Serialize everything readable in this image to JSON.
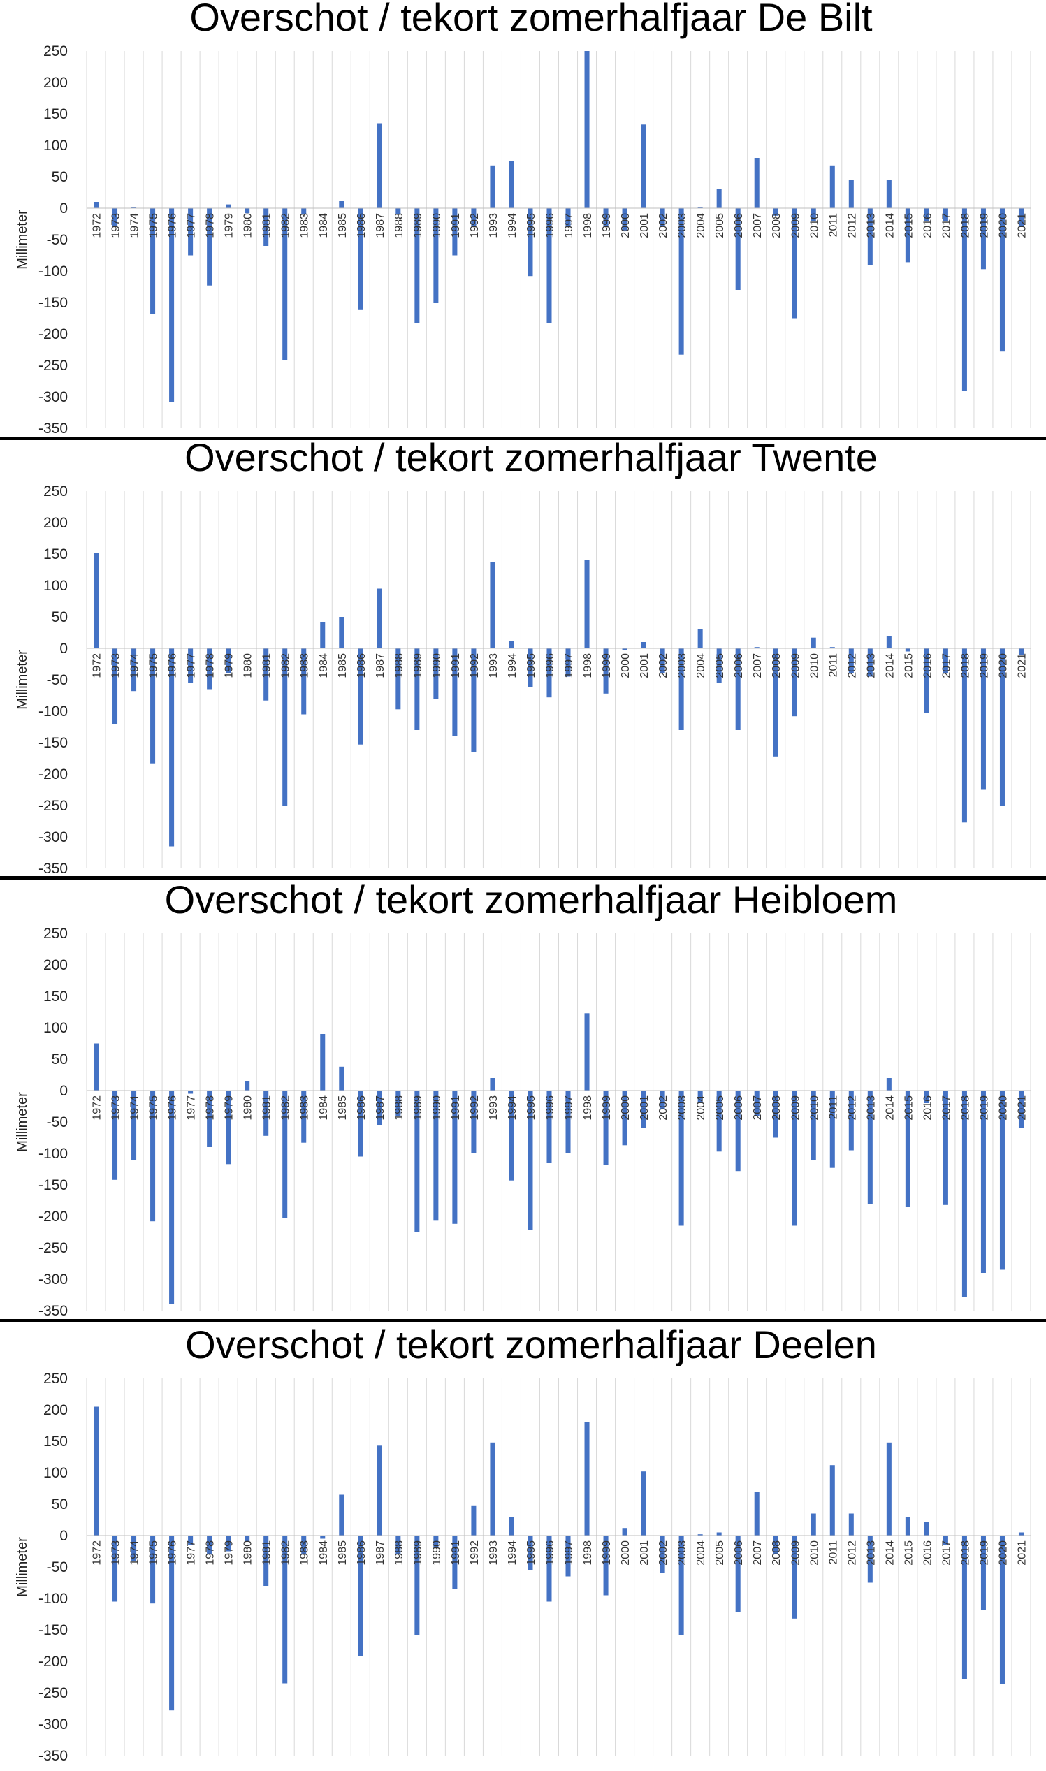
{
  "style": {
    "bar_color": "#4472c4",
    "grid_color": "#d9d9d9",
    "divider_color": "#000000"
  },
  "chart_data": [
    {
      "type": "bar",
      "title": "Overschot / tekort zomerhalfjaar De Bilt",
      "ylabel": "Millimeter",
      "xlabel": "",
      "ylim": [
        -350,
        250
      ],
      "yticks": [
        "250",
        "200",
        "150",
        "100",
        "50",
        "0",
        "-50",
        "-100",
        "-150",
        "-200",
        "-250",
        "-300",
        "-350"
      ],
      "grid": "vertical",
      "categories": [
        "1972",
        "1973",
        "1974",
        "1975",
        "1976",
        "1977",
        "1978",
        "1979",
        "1980",
        "1981",
        "1982",
        "1983",
        "1984",
        "1985",
        "1986",
        "1987",
        "1988",
        "1989",
        "1990",
        "1991",
        "1992",
        "1993",
        "1994",
        "1995",
        "1996",
        "1997",
        "1998",
        "1999",
        "2000",
        "2001",
        "2002",
        "2003",
        "2004",
        "2005",
        "2006",
        "2007",
        "2008",
        "2009",
        "2010",
        "2011",
        "2012",
        "2013",
        "2014",
        "2015",
        "2016",
        "2017",
        "2018",
        "2019",
        "2020",
        "2021"
      ],
      "values": [
        10,
        -30,
        2,
        -168,
        -308,
        -75,
        -123,
        6,
        -8,
        -60,
        -242,
        -10,
        0,
        12,
        -162,
        135,
        -10,
        -183,
        -150,
        -75,
        -30,
        68,
        75,
        -108,
        -183,
        -30,
        250,
        -30,
        -35,
        133,
        -28,
        -233,
        2,
        30,
        -130,
        80,
        -12,
        -175,
        -20,
        68,
        45,
        -90,
        45,
        -86,
        -20,
        -20,
        -290,
        -97,
        -228,
        -30
      ]
    },
    {
      "type": "bar",
      "title": "Overschot / tekort zomerhalfjaar Twente",
      "ylabel": "Millimeter",
      "xlabel": "",
      "ylim": [
        -350,
        250
      ],
      "yticks": [
        "250",
        "200",
        "150",
        "100",
        "50",
        "0",
        "-50",
        "-100",
        "-150",
        "-200",
        "-250",
        "-300",
        "-350"
      ],
      "grid": "vertical",
      "categories": [
        "1972",
        "1973",
        "1974",
        "1975",
        "1976",
        "1977",
        "1978",
        "1979",
        "1980",
        "1981",
        "1982",
        "1983",
        "1984",
        "1985",
        "1986",
        "1987",
        "1988",
        "1989",
        "1990",
        "1991",
        "1992",
        "1993",
        "1994",
        "1995",
        "1996",
        "1997",
        "1998",
        "1999",
        "2000",
        "2001",
        "2002",
        "2003",
        "2004",
        "2005",
        "2006",
        "2007",
        "2008",
        "2009",
        "2010",
        "2011",
        "2012",
        "2013",
        "2014",
        "2015",
        "2016",
        "2017",
        "2018",
        "2019",
        "2020",
        "2021"
      ],
      "values": [
        152,
        -120,
        -68,
        -183,
        -315,
        -55,
        -65,
        -40,
        0,
        -83,
        -250,
        -105,
        42,
        50,
        -153,
        95,
        -97,
        -130,
        -80,
        -140,
        -165,
        137,
        12,
        -62,
        -78,
        -45,
        141,
        -72,
        -3,
        10,
        -40,
        -130,
        30,
        -55,
        -130,
        2,
        -172,
        -108,
        17,
        2,
        -40,
        -45,
        20,
        -5,
        -103,
        -40,
        -277,
        -225,
        -250,
        -10
      ]
    },
    {
      "type": "bar",
      "title": "Overschot / tekort zomerhalfjaar Heibloem",
      "ylabel": "Millimeter",
      "xlabel": "",
      "ylim": [
        -350,
        250
      ],
      "yticks": [
        "250",
        "200",
        "150",
        "100",
        "50",
        "0",
        "-50",
        "-100",
        "-150",
        "-200",
        "-250",
        "-300",
        "-350"
      ],
      "grid": "vertical",
      "categories": [
        "1972",
        "1973",
        "1974",
        "1975",
        "1976",
        "1977",
        "1978",
        "1979",
        "1980",
        "1981",
        "1982",
        "1983",
        "1984",
        "1985",
        "1986",
        "1987",
        "1988",
        "1989",
        "1990",
        "1991",
        "1992",
        "1993",
        "1994",
        "1995",
        "1996",
        "1997",
        "1998",
        "1999",
        "2000",
        "2001",
        "2002",
        "2003",
        "2004",
        "2005",
        "2006",
        "2007",
        "2008",
        "2009",
        "2010",
        "2011",
        "2012",
        "2013",
        "2014",
        "2015",
        "2016",
        "2017",
        "2018",
        "2019",
        "2020",
        "2021"
      ],
      "values": [
        75,
        -142,
        -110,
        -208,
        -340,
        -5,
        -90,
        -117,
        15,
        -72,
        -203,
        -83,
        90,
        38,
        -105,
        -55,
        -40,
        -225,
        -207,
        -212,
        -100,
        20,
        -143,
        -222,
        -115,
        -100,
        123,
        -118,
        -87,
        -60,
        -30,
        -215,
        -20,
        -97,
        -128,
        -40,
        -75,
        -215,
        -110,
        -123,
        -95,
        -180,
        20,
        -185,
        -20,
        -182,
        -328,
        -290,
        -285,
        -60
      ]
    },
    {
      "type": "bar",
      "title": "Overschot / tekort zomerhalfjaar Deelen",
      "ylabel": "Millimeter",
      "xlabel": "",
      "ylim": [
        -350,
        250
      ],
      "yticks": [
        "250",
        "200",
        "150",
        "100",
        "50",
        "0",
        "-50",
        "-100",
        "-150",
        "-200",
        "-250",
        "-300",
        "-350"
      ],
      "grid": "vertical",
      "categories": [
        "1972",
        "1973",
        "1974",
        "1975",
        "1976",
        "1977",
        "1978",
        "1979",
        "1980",
        "1981",
        "1982",
        "1983",
        "1984",
        "1985",
        "1986",
        "1987",
        "1988",
        "1989",
        "1990",
        "1991",
        "1992",
        "1993",
        "1994",
        "1995",
        "1996",
        "1997",
        "1998",
        "1999",
        "2000",
        "2001",
        "2002",
        "2003",
        "2004",
        "2005",
        "2006",
        "2007",
        "2008",
        "2009",
        "2010",
        "2011",
        "2012",
        "2013",
        "2014",
        "2015",
        "2016",
        "2017",
        "2018",
        "2019",
        "2020",
        "2021"
      ],
      "values": [
        205,
        -105,
        -40,
        -108,
        -278,
        -15,
        -30,
        -25,
        -10,
        -80,
        -235,
        -30,
        -5,
        65,
        -192,
        143,
        -30,
        -158,
        -20,
        -85,
        48,
        148,
        30,
        -55,
        -105,
        -65,
        180,
        -95,
        12,
        102,
        -60,
        -158,
        2,
        5,
        -122,
        70,
        -30,
        -132,
        35,
        112,
        35,
        -75,
        148,
        30,
        22,
        -15,
        -228,
        -118,
        -236,
        5
      ]
    }
  ]
}
